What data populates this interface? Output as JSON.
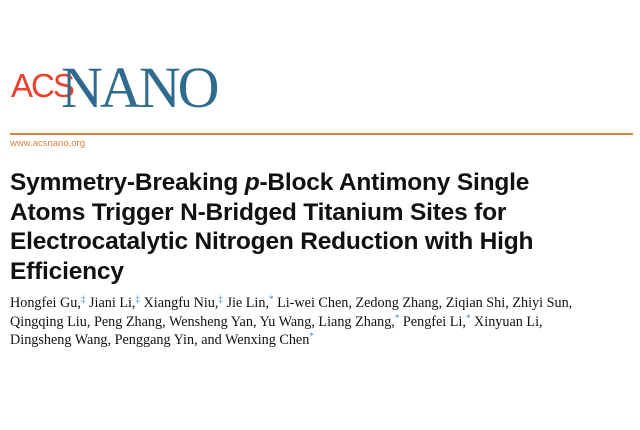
{
  "journal": {
    "logo_acs": "ACS",
    "logo_nano": "NANO",
    "url": "www.acsnano.org"
  },
  "colors": {
    "acs_red": "#e8412f",
    "nano_blue": "#2f6a8f",
    "rule_orange": "#d9823b",
    "mark_blue": "#3b7fc4"
  },
  "title": {
    "line1_a": "Symmetry-Breaking ",
    "line1_italic": "p",
    "line1_b": "-Block Antimony Single",
    "line2": "Atoms Trigger N-Bridged Titanium Sites for",
    "line3": "Electrocatalytic Nitrogen Reduction with High",
    "line4": "Efficiency"
  },
  "authors": [
    {
      "name": "Hongfei Gu,",
      "mark": "‡"
    },
    {
      "name": "Jiani Li,",
      "mark": "‡"
    },
    {
      "name": "Xiangfu Niu,",
      "mark": "‡"
    },
    {
      "name": "Jie Lin,",
      "mark": "*"
    },
    {
      "name": "Li-wei Chen,",
      "mark": ""
    },
    {
      "name": "Zedong Zhang,",
      "mark": ""
    },
    {
      "name": "Ziqian Shi,",
      "mark": ""
    },
    {
      "name": "Zhiyi Sun,",
      "mark": ""
    },
    {
      "name": "Qingqing Liu,",
      "mark": ""
    },
    {
      "name": "Peng Zhang,",
      "mark": ""
    },
    {
      "name": "Wensheng Yan,",
      "mark": ""
    },
    {
      "name": "Yu Wang,",
      "mark": ""
    },
    {
      "name": "Liang Zhang,",
      "mark": "*"
    },
    {
      "name": "Pengfei Li,",
      "mark": "*"
    },
    {
      "name": "Xinyuan Li,",
      "mark": ""
    },
    {
      "name": "Dingsheng Wang,",
      "mark": ""
    },
    {
      "name": "Penggang Yin,",
      "mark": ""
    },
    {
      "name": "and Wenxing Chen",
      "mark": "*"
    }
  ]
}
